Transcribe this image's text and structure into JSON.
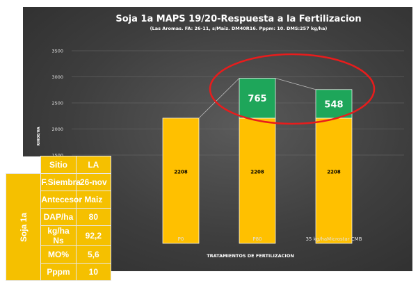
{
  "chart_data": {
    "type": "bar",
    "stacked": true,
    "title": "Soja 1a MAPS 19/20-Respuesta a la Fertilizacion",
    "subtitle": "(Las Aromas. FA: 26-11, s/Maiz. DM40R16. Pppm: 10. DMS:257 kg/ha)",
    "xlabel": "TRATAMIENTOS DE FERTILIZACION",
    "ylabel": "RINDE/HA",
    "ylim": [
      0,
      3500
    ],
    "yticks": [
      1500,
      2000,
      2500,
      3000,
      3500
    ],
    "categories": [
      "P0",
      "P80",
      "35 kg/haMicrostar CMB"
    ],
    "series": [
      {
        "values": [
          2208,
          2208,
          2208
        ],
        "color": "#ffc000",
        "labels": [
          "2208",
          "2208",
          "2208"
        ]
      },
      {
        "values": [
          0,
          765,
          548
        ],
        "color": "#1ea65a",
        "labels": [
          "",
          "765",
          "548"
        ]
      }
    ],
    "grid": true
  },
  "table": {
    "header": {
      "col1": "Sitio",
      "col2": "LA"
    },
    "group_label": "Soja 1a",
    "rows": [
      {
        "label": "F.Siembra",
        "value": "26-nov"
      },
      {
        "label": "Antecesor",
        "value": "Maiz"
      },
      {
        "label": "DAP/ha",
        "value": "80"
      },
      {
        "label": "kg/ha Ns",
        "value": "92,2"
      },
      {
        "label": "MO%",
        "value": "5,6"
      },
      {
        "label": "Pppm",
        "value": "10"
      }
    ]
  },
  "annotation": {
    "ellipse_color": "#e81c1c"
  }
}
